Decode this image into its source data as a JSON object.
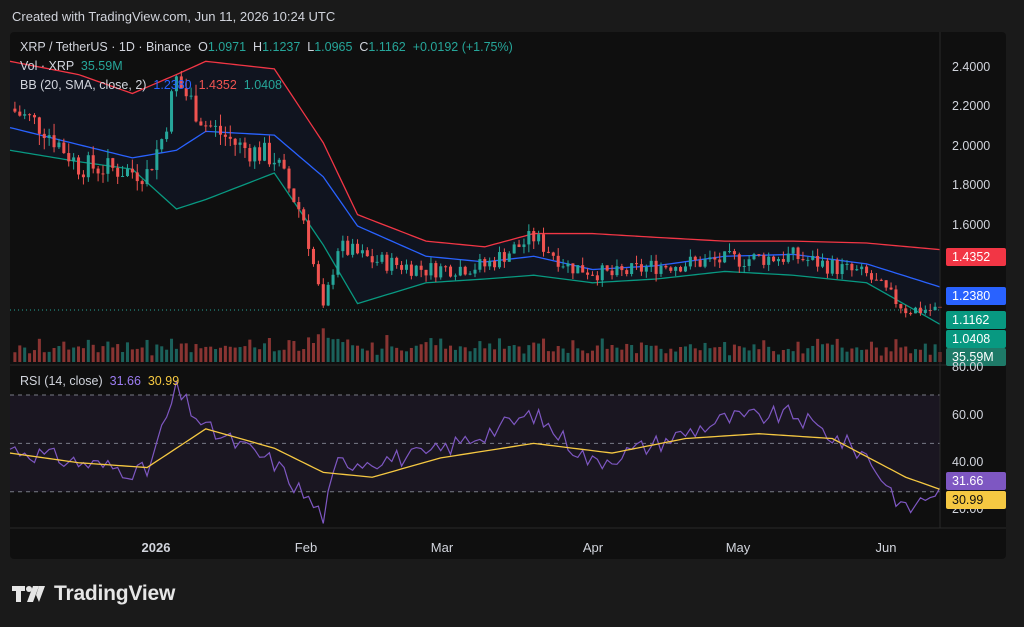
{
  "header": {
    "created_text": "Created with TradingView.com, Jun 11, 2026 10:24 UTC"
  },
  "legend": {
    "symbol": "XRP / TetherUS · 1D · Binance",
    "open_label": "O",
    "open": "1.0971",
    "high_label": "H",
    "high": "1.1237",
    "low_label": "L",
    "low": "1.0965",
    "close_label": "C",
    "close": "1.1162",
    "change": "+0.0192 (+1.75%)",
    "vol_label": "Vol · XRP",
    "vol_value": "35.59M",
    "bb_label": "BB (20, SMA, close, 2)",
    "bb_mid": "1.2380",
    "bb_upper": "1.4352",
    "bb_lower": "1.0408",
    "rsi_label": "RSI (14, close)",
    "rsi_value": "31.66",
    "rsi_ma": "30.99"
  },
  "price_axis": [
    "2.4000",
    "2.2000",
    "2.0000",
    "1.8000",
    "1.6000"
  ],
  "rsi_axis": [
    "80.00",
    "60.00",
    "40.00",
    "20.00"
  ],
  "price_tags": {
    "upper": "1.4352",
    "mid": "1.2380",
    "close": "1.1162",
    "lower": "1.0408",
    "volume": "35.59M",
    "rsi": "31.66",
    "rsi_ma": "30.99"
  },
  "x_axis": [
    "2026",
    "Feb",
    "Mar",
    "Apr",
    "May",
    "Jun"
  ],
  "footer": {
    "brand": "TradingView"
  },
  "colors": {
    "up": "#26a69a",
    "down": "#ef5350",
    "bb_basis": "#2962ff",
    "bb_upper": "#f23645",
    "bb_lower": "#089981",
    "rsi": "#7e57c2",
    "rsi_ma": "#f5c842"
  },
  "chart_data": [
    {
      "type": "candlestick",
      "title": "XRP / TetherUS · 1D · Binance",
      "x_range": [
        "2025-12-03",
        "2026-06-11"
      ],
      "ylim": [
        1.05,
        2.45
      ],
      "series": [
        {
          "name": "BB upper",
          "points": [
            [
              "2025-12-03",
              2.43
            ],
            [
              "2025-12-17",
              2.36
            ],
            [
              "2025-12-28",
              2.26
            ],
            [
              "2026-01-06",
              2.36
            ],
            [
              "2026-01-12",
              2.43
            ],
            [
              "2026-01-26",
              2.39
            ],
            [
              "2026-02-05",
              2.0
            ],
            [
              "2026-02-12",
              1.62
            ],
            [
              "2026-02-26",
              1.48
            ],
            [
              "2026-03-10",
              1.45
            ],
            [
              "2026-03-20",
              1.52
            ],
            [
              "2026-04-01",
              1.52
            ],
            [
              "2026-04-14",
              1.5
            ],
            [
              "2026-04-28",
              1.48
            ],
            [
              "2026-05-12",
              1.48
            ],
            [
              "2026-05-27",
              1.47
            ],
            [
              "2026-06-11",
              1.4352
            ]
          ]
        },
        {
          "name": "BB basis",
          "points": [
            [
              "2025-12-03",
              2.08
            ],
            [
              "2025-12-17",
              1.99
            ],
            [
              "2025-12-28",
              1.92
            ],
            [
              "2026-01-06",
              1.96
            ],
            [
              "2026-01-12",
              2.06
            ],
            [
              "2026-01-26",
              2.04
            ],
            [
              "2026-02-05",
              1.82
            ],
            [
              "2026-02-12",
              1.56
            ],
            [
              "2026-02-26",
              1.4
            ],
            [
              "2026-03-10",
              1.37
            ],
            [
              "2026-03-20",
              1.4
            ],
            [
              "2026-04-01",
              1.33
            ],
            [
              "2026-04-14",
              1.35
            ],
            [
              "2026-04-28",
              1.4
            ],
            [
              "2026-05-12",
              1.41
            ],
            [
              "2026-05-27",
              1.36
            ],
            [
              "2026-06-11",
              1.238
            ]
          ]
        },
        {
          "name": "BB lower",
          "points": [
            [
              "2025-12-03",
              1.96
            ],
            [
              "2025-12-17",
              1.9
            ],
            [
              "2025-12-28",
              1.86
            ],
            [
              "2026-01-06",
              1.65
            ],
            [
              "2026-01-12",
              1.7
            ],
            [
              "2026-01-26",
              1.84
            ],
            [
              "2026-02-05",
              1.46
            ],
            [
              "2026-02-12",
              1.15
            ],
            [
              "2026-02-26",
              1.26
            ],
            [
              "2026-03-10",
              1.28
            ],
            [
              "2026-03-20",
              1.3
            ],
            [
              "2026-04-01",
              1.26
            ],
            [
              "2026-04-14",
              1.28
            ],
            [
              "2026-04-28",
              1.32
            ],
            [
              "2026-05-12",
              1.3
            ],
            [
              "2026-05-27",
              1.26
            ],
            [
              "2026-06-11",
              1.0408
            ]
          ]
        },
        {
          "name": "Close",
          "points": [
            [
              "2025-12-03",
              2.18
            ],
            [
              "2025-12-10",
              2.08
            ],
            [
              "2025-12-17",
              1.88
            ],
            [
              "2025-12-24",
              1.86
            ],
            [
              "2025-12-31",
              1.84
            ],
            [
              "2026-01-03",
              2.02
            ],
            [
              "2026-01-06",
              2.33
            ],
            [
              "2026-01-12",
              2.1
            ],
            [
              "2026-01-19",
              1.98
            ],
            [
              "2026-01-26",
              1.92
            ],
            [
              "2026-02-01",
              1.6
            ],
            [
              "2026-02-05",
              1.11
            ],
            [
              "2026-02-08",
              1.45
            ],
            [
              "2026-02-15",
              1.38
            ],
            [
              "2026-02-26",
              1.33
            ],
            [
              "2026-03-10",
              1.35
            ],
            [
              "2026-03-20",
              1.5
            ],
            [
              "2026-03-27",
              1.35
            ],
            [
              "2026-04-05",
              1.3
            ],
            [
              "2026-04-14",
              1.35
            ],
            [
              "2026-04-28",
              1.38
            ],
            [
              "2026-05-12",
              1.4
            ],
            [
              "2026-05-27",
              1.3
            ],
            [
              "2026-06-04",
              1.12
            ],
            [
              "2026-06-11",
              1.1162
            ]
          ]
        }
      ]
    },
    {
      "type": "bar",
      "title": "Vol · XRP",
      "x_range": [
        "2025-12-03",
        "2026-06-11"
      ],
      "last_value": "35.59M"
    },
    {
      "type": "line",
      "title": "RSI (14, close)",
      "ylim": [
        15,
        82
      ],
      "bands": [
        30,
        50,
        70
      ],
      "series": [
        {
          "name": "RSI",
          "points": [
            [
              "2025-12-03",
              48
            ],
            [
              "2025-12-17",
              42
            ],
            [
              "2025-12-31",
              38
            ],
            [
              "2026-01-06",
              72
            ],
            [
              "2026-01-12",
              56
            ],
            [
              "2026-01-26",
              42
            ],
            [
              "2026-02-05",
              20
            ],
            [
              "2026-02-08",
              42
            ],
            [
              "2026-02-26",
              45
            ],
            [
              "2026-03-20",
              62
            ],
            [
              "2026-04-01",
              42
            ],
            [
              "2026-04-14",
              50
            ],
            [
              "2026-04-28",
              60
            ],
            [
              "2026-05-12",
              62
            ],
            [
              "2026-05-27",
              45
            ],
            [
              "2026-06-04",
              22
            ],
            [
              "2026-06-11",
              31.66
            ]
          ]
        },
        {
          "name": "RSI MA",
          "points": [
            [
              "2025-12-03",
              46
            ],
            [
              "2025-12-17",
              42
            ],
            [
              "2025-12-31",
              40
            ],
            [
              "2026-01-12",
              56
            ],
            [
              "2026-01-26",
              48
            ],
            [
              "2026-02-05",
              38
            ],
            [
              "2026-02-15",
              36
            ],
            [
              "2026-03-01",
              44
            ],
            [
              "2026-03-20",
              50
            ],
            [
              "2026-04-05",
              46
            ],
            [
              "2026-04-20",
              52
            ],
            [
              "2026-05-05",
              54
            ],
            [
              "2026-05-20",
              52
            ],
            [
              "2026-06-04",
              36
            ],
            [
              "2026-06-11",
              30.99
            ]
          ]
        }
      ]
    }
  ]
}
